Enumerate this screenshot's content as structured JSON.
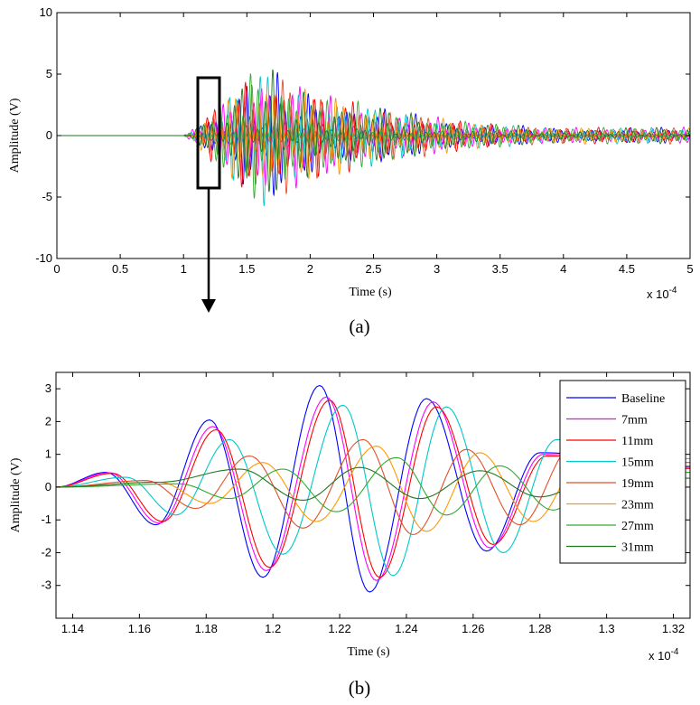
{
  "chart_data": [
    {
      "panel_label": "(a)",
      "type": "line",
      "xlabel": "Time (s)",
      "ylabel": "Amplitude (V)",
      "x_multiplier_text": "x 10",
      "x_multiplier_exp": "-4",
      "xlim": [
        0,
        5
      ],
      "ylim": [
        -10,
        10
      ],
      "xticks": [
        "0",
        "0.5",
        "1",
        "1.5",
        "2",
        "2.5",
        "3",
        "3.5",
        "4",
        "4.5",
        "5"
      ],
      "yticks": [
        "10",
        "5",
        "0",
        "-5",
        "-10"
      ],
      "highlight_box_x": [
        1.1,
        1.3
      ],
      "highlight_box_y": [
        -4.5,
        4.7
      ],
      "waveform_onset": 1.0,
      "peak_time": 1.6,
      "peak_amplitude": 6,
      "grid": false
    },
    {
      "panel_label": "(b)",
      "type": "line",
      "xlabel": "Time (s)",
      "ylabel": "Amplitude (V)",
      "x_multiplier_text": "x 10",
      "x_multiplier_exp": "-4",
      "xlim": [
        1.135,
        1.325
      ],
      "ylim": [
        -4,
        3.5
      ],
      "xticks": [
        "1.14",
        "1.16",
        "1.18",
        "1.2",
        "1.22",
        "1.24",
        "1.26",
        "1.28",
        "1.3",
        "1.32"
      ],
      "yticks": [
        "3",
        "2",
        "1",
        "0",
        "-1",
        "-2",
        "-3"
      ],
      "legend_position": "top-right",
      "grid": false,
      "series": [
        {
          "name": "Baseline",
          "color": "#0000ff",
          "peaks": [
            [
              1.15,
              0.45
            ],
            [
              1.165,
              -1.15
            ],
            [
              1.181,
              2.05
            ],
            [
              1.197,
              -2.75
            ],
            [
              1.214,
              3.1
            ],
            [
              1.229,
              -3.2
            ],
            [
              1.246,
              2.7
            ],
            [
              1.264,
              -1.95
            ],
            [
              1.28,
              1.05
            ]
          ]
        },
        {
          "name": "7mm",
          "color": "#ff00ff",
          "peaks": [
            [
              1.151,
              0.44
            ],
            [
              1.166,
              -1.1
            ],
            [
              1.182,
              1.85
            ],
            [
              1.198,
              -2.55
            ],
            [
              1.216,
              2.75
            ],
            [
              1.231,
              -2.85
            ],
            [
              1.248,
              2.6
            ],
            [
              1.265,
              -1.85
            ],
            [
              1.281,
              1.0
            ]
          ]
        },
        {
          "name": "11mm",
          "color": "#ff0000",
          "peaks": [
            [
              1.152,
              0.42
            ],
            [
              1.167,
              -1.05
            ],
            [
              1.183,
              1.75
            ],
            [
              1.199,
              -2.45
            ],
            [
              1.217,
              2.65
            ],
            [
              1.232,
              -2.75
            ],
            [
              1.249,
              2.45
            ],
            [
              1.266,
              -1.75
            ],
            [
              1.282,
              0.95
            ]
          ]
        },
        {
          "name": "15mm",
          "color": "#00c8c8",
          "peaks": [
            [
              1.156,
              0.3
            ],
            [
              1.171,
              -0.85
            ],
            [
              1.187,
              1.45
            ],
            [
              1.203,
              -2.05
            ],
            [
              1.221,
              2.5
            ],
            [
              1.236,
              -2.7
            ],
            [
              1.252,
              2.45
            ],
            [
              1.269,
              -2.0
            ],
            [
              1.285,
              1.45
            ]
          ]
        },
        {
          "name": "19mm",
          "color": "#e0502a",
          "peaks": [
            [
              1.162,
              0.2
            ],
            [
              1.177,
              -0.65
            ],
            [
              1.193,
              0.95
            ],
            [
              1.209,
              -1.25
            ],
            [
              1.227,
              1.45
            ],
            [
              1.242,
              -1.45
            ],
            [
              1.258,
              1.15
            ],
            [
              1.274,
              -1.15
            ],
            [
              1.29,
              1.25
            ]
          ]
        },
        {
          "name": "23mm",
          "color": "#ff9900",
          "peaks": [
            [
              1.166,
              0.15
            ],
            [
              1.181,
              -0.5
            ],
            [
              1.197,
              0.75
            ],
            [
              1.213,
              -1.05
            ],
            [
              1.231,
              1.25
            ],
            [
              1.246,
              -1.35
            ],
            [
              1.262,
              1.05
            ],
            [
              1.278,
              -1.05
            ],
            [
              1.294,
              1.0
            ]
          ]
        },
        {
          "name": "27mm",
          "color": "#33aa33",
          "peaks": [
            [
              1.172,
              0.1
            ],
            [
              1.187,
              -0.35
            ],
            [
              1.203,
              0.55
            ],
            [
              1.219,
              -0.75
            ],
            [
              1.237,
              0.9
            ],
            [
              1.252,
              -0.85
            ],
            [
              1.268,
              0.65
            ],
            [
              1.284,
              -0.7
            ],
            [
              1.3,
              0.75
            ]
          ]
        },
        {
          "name": "31mm",
          "color": "#227722",
          "peaks": [
            [
              1.166,
              0.15
            ],
            [
              1.19,
              0.55
            ],
            [
              1.209,
              -0.4
            ],
            [
              1.226,
              0.6
            ],
            [
              1.244,
              -0.35
            ],
            [
              1.262,
              0.5
            ],
            [
              1.28,
              -0.3
            ],
            [
              1.3,
              0.45
            ]
          ]
        }
      ]
    }
  ]
}
